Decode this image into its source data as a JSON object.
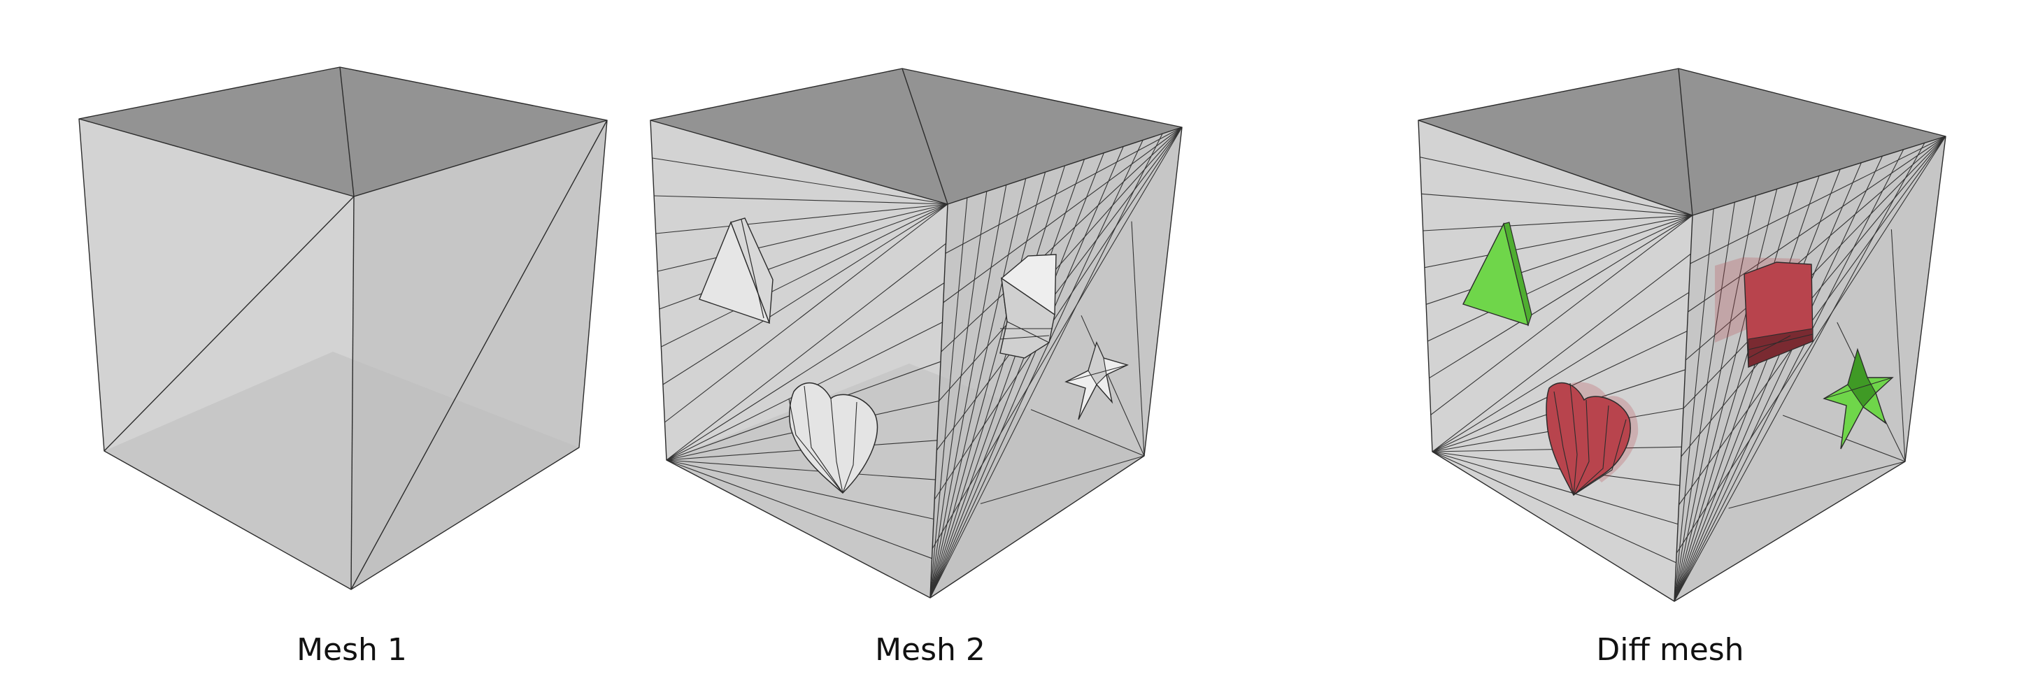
{
  "panels": [
    {
      "id": "mesh1",
      "caption": "Mesh 1"
    },
    {
      "id": "mesh2",
      "caption": "Mesh 2"
    },
    {
      "id": "diff",
      "caption": "Diff mesh"
    }
  ],
  "colors": {
    "top_face": "#939393",
    "left_face": "#d2d2d2",
    "right_face": "#c4c4c4",
    "inner_floor": "#b9b9b9",
    "edge": "#2b2b2b",
    "added": "#6fd64a",
    "removed": "#b8444d"
  }
}
